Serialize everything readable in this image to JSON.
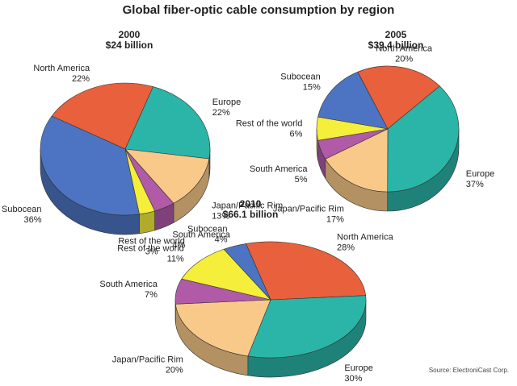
{
  "title": "Global fiber-optic cable consumption by region",
  "source": "Source: ElectroniCast Corp.",
  "chart_data": [
    {
      "type": "pie",
      "title": "2000",
      "subtitle": "$24 billion",
      "categories": [
        "North America",
        "Europe",
        "Japan/Pacific Rim",
        "South America",
        "Rest of the world",
        "Subocean"
      ],
      "values": [
        22,
        22,
        13,
        4,
        3,
        36
      ],
      "value_labels": [
        "22%",
        "22%",
        "13%",
        "4%",
        "3%",
        "36%"
      ],
      "colors": [
        "#e8603c",
        "#2bb5a8",
        "#f9c98a",
        "#b05aa8",
        "#f5ee3a",
        "#4d74c2"
      ]
    },
    {
      "type": "pie",
      "title": "2005",
      "subtitle": "$39.4 billion",
      "categories": [
        "North America",
        "Europe",
        "Japan/Pacific Rim",
        "South America",
        "Rest of the world",
        "Subocean"
      ],
      "values": [
        20,
        37,
        17,
        5,
        6,
        15
      ],
      "value_labels": [
        "20%",
        "37%",
        "17%",
        "5%",
        "6%",
        "15%"
      ],
      "colors": [
        "#e8603c",
        "#2bb5a8",
        "#f9c98a",
        "#b05aa8",
        "#f5ee3a",
        "#4d74c2"
      ]
    },
    {
      "type": "pie",
      "title": "2010",
      "subtitle": "$66.1 billion",
      "categories": [
        "North America",
        "Europe",
        "Japan/Pacific Rim",
        "South America",
        "Rest of the world",
        "Subocean"
      ],
      "values": [
        28,
        30,
        20,
        7,
        11,
        4
      ],
      "value_labels": [
        "28%",
        "30%",
        "20%",
        "7%",
        "11%",
        "4%"
      ],
      "colors": [
        "#e8603c",
        "#2bb5a8",
        "#f9c98a",
        "#b05aa8",
        "#f5ee3a",
        "#4d74c2"
      ]
    }
  ]
}
